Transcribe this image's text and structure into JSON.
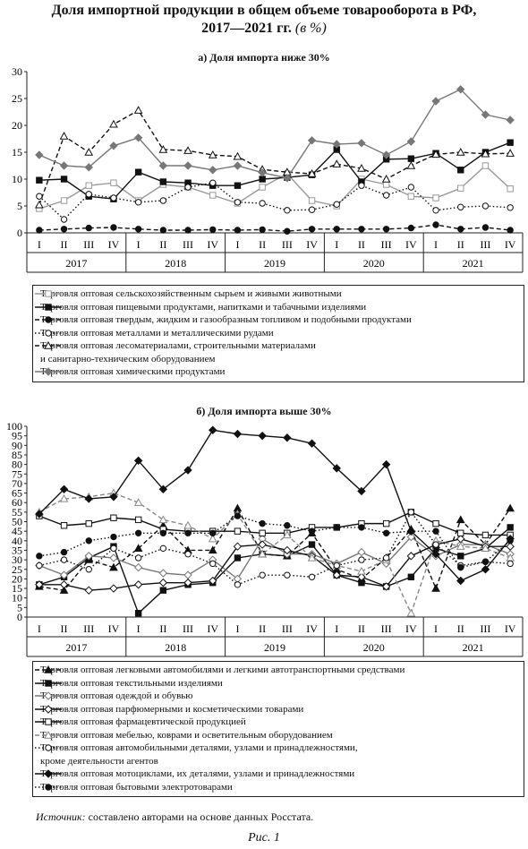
{
  "title_line1": "Доля импортной продукции в общем объеме товарооборота в РФ,",
  "title_line2": "2017—2021 гг.",
  "title_unit": "(в %)",
  "source_label": "Источник:",
  "source_text": "составлено авторами на основе данных Росстата.",
  "figure_caption": "Рис. 1",
  "chart_data": [
    {
      "type": "line",
      "subtitle": "а) Доля импорта ниже 30%",
      "ylim": [
        0,
        30
      ],
      "yticks": [
        0,
        5,
        10,
        15,
        20,
        25,
        30
      ],
      "quarters": [
        "I",
        "II",
        "III",
        "IV",
        "I",
        "II",
        "III",
        "IV",
        "I",
        "II",
        "III",
        "IV",
        "I",
        "II",
        "III",
        "IV",
        "I",
        "II",
        "III",
        "IV"
      ],
      "years": [
        "2017",
        "2018",
        "2019",
        "2020",
        "2021"
      ],
      "series": [
        {
          "name": "Торговля оптовая сельскохозяйственным сырьем и живыми животными",
          "marker": "square-open",
          "dash": "solid",
          "color": "#999999",
          "values": [
            4.5,
            6,
            8.8,
            9.3,
            6,
            9,
            8.5,
            7,
            5.5,
            8.5,
            11,
            6,
            5,
            10,
            9,
            6.8,
            6.5,
            8.3,
            12.5,
            8.2
          ]
        },
        {
          "name": "Торговля оптовая пищевыми продуктами, напитками и табачными изделиями",
          "marker": "square-filled",
          "dash": "solid",
          "color": "#111111",
          "values": [
            9.8,
            10,
            6.8,
            6.3,
            11.3,
            9.5,
            9.3,
            8.8,
            8.8,
            10,
            10.3,
            10.8,
            15.5,
            9.5,
            13.7,
            13.8,
            14.8,
            11.7,
            15,
            16.8
          ]
        },
        {
          "name": "Торговля оптовая твердым, жидким и газообразным топливом и подобными продуктами",
          "marker": "circle-filled",
          "dash": "dashed",
          "color": "#111111",
          "values": [
            0.5,
            0.7,
            0.9,
            1,
            0.7,
            0.5,
            0.5,
            0.6,
            0.5,
            0.6,
            0.3,
            0.7,
            0.7,
            0.7,
            0.7,
            0.9,
            1.5,
            0.7,
            1,
            0.5
          ]
        },
        {
          "name": "Торговля оптовая металлами и металлическими рудами",
          "marker": "circle-open",
          "dash": "dotted",
          "color": "#111111",
          "values": [
            6.8,
            2.5,
            7.2,
            6.5,
            5.7,
            6,
            8.5,
            9.3,
            5.7,
            5.5,
            4.2,
            4.3,
            5.3,
            8.8,
            7,
            8.5,
            4.2,
            4.8,
            5,
            4.7
          ]
        },
        {
          "name": "Торговля оптовая лесоматериалами, строительными материалами",
          "name_line2": "и санитарно-техническим оборудованием",
          "marker": "triangle-open",
          "dash": "dashed",
          "color": "#111111",
          "values": [
            5.2,
            18,
            15,
            20.2,
            22.8,
            15.5,
            15.3,
            14.5,
            14.2,
            11.8,
            11.3,
            11,
            12.8,
            12,
            10,
            12.5,
            14.6,
            15,
            14.7,
            14.8
          ]
        },
        {
          "name": "Торговля оптовая химическими продуктами",
          "marker": "diamond-filled",
          "dash": "solid",
          "color": "#777777",
          "values": [
            14.5,
            12.5,
            12.2,
            16.2,
            17.7,
            12.5,
            12.5,
            11.7,
            12.5,
            11.2,
            10.2,
            17.2,
            16.5,
            16.7,
            14.5,
            17,
            24.5,
            26.7,
            22,
            21
          ]
        }
      ]
    },
    {
      "type": "line",
      "subtitle": "б) Доля импорта выше 30%",
      "ylim": [
        0,
        100
      ],
      "yticks": [
        0,
        5,
        10,
        15,
        20,
        25,
        30,
        35,
        40,
        45,
        50,
        55,
        60,
        65,
        70,
        75,
        80,
        85,
        90,
        95,
        100
      ],
      "quarters": [
        "I",
        "II",
        "III",
        "IV",
        "I",
        "II",
        "III",
        "IV",
        "I",
        "II",
        "III",
        "IV",
        "I",
        "II",
        "III",
        "IV",
        "I",
        "II",
        "III",
        "IV"
      ],
      "years": [
        "2017",
        "2018",
        "2019",
        "2020",
        "2021"
      ],
      "series": [
        {
          "name": "Торговля оптовая легковыми автомобилями и легкими автотранспортными средствами",
          "marker": "triangle-filled",
          "dash": "dashed",
          "color": "#111111",
          "values": [
            16,
            14,
            30,
            26,
            36,
            48,
            35,
            35,
            57,
            33,
            32,
            44,
            25,
            20,
            31,
            46,
            15,
            51,
            38,
            57
          ]
        },
        {
          "name": "Торговля оптовая текстильными изделиями",
          "marker": "square-filled",
          "dash": "solid",
          "color": "#111111",
          "values": [
            17,
            21,
            31,
            37,
            2,
            14,
            17,
            18,
            31,
            33,
            32,
            38,
            22,
            18,
            16,
            21,
            36,
            32,
            36,
            47
          ]
        },
        {
          "name": "Торговля оптовая одеждой и обувью",
          "marker": "diamond-open",
          "dash": "solid",
          "color": "#777777",
          "values": [
            27,
            22,
            32,
            31,
            26,
            23,
            22,
            30,
            20,
            41,
            33,
            33,
            28,
            34,
            28,
            42,
            32,
            38,
            38,
            33
          ]
        },
        {
          "name": "Торговля оптовая парфюмерными и косметическими товарами",
          "marker": "diamond-open",
          "dash": "solid",
          "color": "#111111",
          "values": [
            17,
            17,
            14,
            15,
            17,
            18,
            18,
            19,
            37,
            38,
            35,
            32,
            22,
            21,
            16,
            32,
            38,
            41,
            37,
            37
          ]
        },
        {
          "name": "Торговля оптовая фармацевтической продукцией",
          "marker": "square-open",
          "dash": "solid",
          "color": "#111111",
          "values": [
            53,
            48,
            49,
            52,
            51,
            46,
            45,
            45,
            45,
            44,
            44,
            47,
            47,
            49,
            49,
            55,
            49,
            44,
            43,
            43
          ]
        },
        {
          "name": "Торговля оптовая мебелью, коврами и осветительным оборудованием",
          "marker": "triangle-open",
          "dash": "dashed",
          "color": "#888888",
          "values": [
            55,
            62,
            63,
            65,
            60,
            51,
            48,
            41,
            54,
            33,
            43,
            31,
            27,
            24,
            30,
            2,
            40,
            37,
            36,
            31
          ]
        },
        {
          "name": "Торговля оптовая автомобильными деталями, узлами и принадлежностями,",
          "name_line2": "кроме деятельности агентов",
          "marker": "circle-open",
          "dash": "dotted",
          "color": "#111111",
          "values": [
            27,
            30,
            25,
            36,
            31,
            36,
            33,
            28,
            17,
            22,
            22,
            21,
            27,
            30,
            31,
            55,
            38,
            27,
            29,
            28
          ]
        },
        {
          "name": "Торговля оптовая мотоциклами, их деталями, узлами и принадлежностями",
          "marker": "diamond-filled",
          "dash": "solid",
          "color": "#111111",
          "values": [
            54,
            67,
            62,
            63,
            82,
            67,
            77,
            98,
            96,
            95,
            94,
            91,
            78,
            66,
            80,
            45,
            33,
            19,
            25,
            41
          ]
        },
        {
          "name": "Торговля оптовая бытовыми электротоварами",
          "marker": "circle-filled",
          "dash": "dotted",
          "color": "#111111",
          "values": [
            32,
            34,
            40,
            42,
            44,
            44,
            44,
            44,
            53,
            49,
            48,
            45,
            47,
            47,
            44,
            45,
            45,
            26,
            29,
            40
          ]
        }
      ]
    }
  ]
}
